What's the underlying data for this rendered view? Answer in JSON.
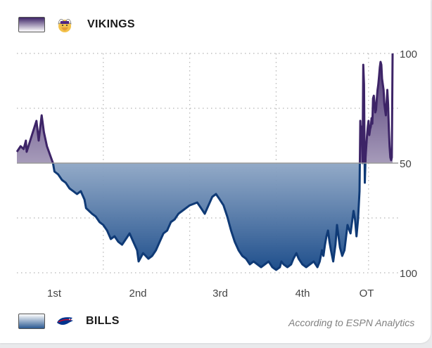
{
  "header": {
    "team_top": "VIKINGS",
    "team_bottom": "BILLS",
    "source_note": "According to ESPN Analytics"
  },
  "icons": {
    "team_top_logo": "vikings-logo-icon",
    "team_bottom_logo": "bills-logo-icon"
  },
  "colors": {
    "vikings": "#3d2467",
    "bills": "#0f3a76",
    "midline": "#9a9a9a"
  },
  "chart_data": {
    "type": "area",
    "x_unit": "game progress (quarters)",
    "x_categories": [
      "1st",
      "2nd",
      "3rd",
      "4th",
      "OT"
    ],
    "y_tick_labels": [
      "100",
      "50",
      "100"
    ],
    "y_range": [
      -100,
      100
    ],
    "grid": true,
    "midline": 0,
    "series": [
      {
        "name": "VIKINGS",
        "comment": "positive values = Vikings win probability above 50%",
        "points": [
          [
            0.0,
            10.3
          ],
          [
            0.05,
            15.4
          ],
          [
            0.09,
            12.8
          ],
          [
            0.12,
            20.5
          ],
          [
            0.13,
            10.3
          ],
          [
            0.2,
            25.6
          ],
          [
            0.26,
            38.5
          ],
          [
            0.29,
            20.5
          ],
          [
            0.33,
            43.6
          ],
          [
            0.36,
            28.2
          ],
          [
            0.4,
            15.4
          ],
          [
            0.44,
            7.7
          ],
          [
            0.48,
            0.0
          ],
          [
            0.5,
            -7.7
          ],
          [
            0.55,
            -10.3
          ],
          [
            0.6,
            -15.4
          ],
          [
            0.65,
            -17.9
          ],
          [
            0.7,
            -23.1
          ],
          [
            0.75,
            -25.6
          ],
          [
            0.8,
            -28.2
          ],
          [
            0.85,
            -25.6
          ],
          [
            0.9,
            -33.3
          ],
          [
            0.92,
            -41.0
          ],
          [
            1.0,
            -46.2
          ],
          [
            1.05,
            -48.7
          ],
          [
            1.1,
            -53.8
          ],
          [
            1.15,
            -56.4
          ],
          [
            1.2,
            -61.5
          ],
          [
            1.25,
            -69.2
          ],
          [
            1.3,
            -66.7
          ],
          [
            1.35,
            -71.8
          ],
          [
            1.4,
            -74.4
          ],
          [
            1.45,
            -69.2
          ],
          [
            1.5,
            -64.1
          ],
          [
            1.55,
            -71.8
          ],
          [
            1.6,
            -79.5
          ],
          [
            1.62,
            -89.7
          ],
          [
            1.68,
            -82.1
          ],
          [
            1.75,
            -87.2
          ],
          [
            1.8,
            -84.6
          ],
          [
            1.85,
            -79.5
          ],
          [
            1.9,
            -71.8
          ],
          [
            1.95,
            -64.1
          ],
          [
            2.0,
            -61.5
          ],
          [
            2.05,
            -53.8
          ],
          [
            2.1,
            -51.3
          ],
          [
            2.15,
            -46.2
          ],
          [
            2.2,
            -43.6
          ],
          [
            2.3,
            -38.5
          ],
          [
            2.4,
            -35.9
          ],
          [
            2.45,
            -41.0
          ],
          [
            2.5,
            -46.2
          ],
          [
            2.55,
            -38.5
          ],
          [
            2.6,
            -30.8
          ],
          [
            2.65,
            -28.2
          ],
          [
            2.7,
            -33.3
          ],
          [
            2.75,
            -38.5
          ],
          [
            2.8,
            -48.7
          ],
          [
            2.85,
            -61.5
          ],
          [
            2.9,
            -71.8
          ],
          [
            2.95,
            -79.5
          ],
          [
            3.0,
            -84.6
          ],
          [
            3.05,
            -87.2
          ],
          [
            3.1,
            -92.3
          ],
          [
            3.15,
            -89.7
          ],
          [
            3.2,
            -92.3
          ],
          [
            3.25,
            -94.9
          ],
          [
            3.3,
            -92.3
          ],
          [
            3.35,
            -89.7
          ],
          [
            3.4,
            -94.9
          ],
          [
            3.45,
            -97.4
          ],
          [
            3.5,
            -94.9
          ],
          [
            3.52,
            -89.7
          ],
          [
            3.55,
            -92.3
          ],
          [
            3.6,
            -94.9
          ],
          [
            3.65,
            -92.3
          ],
          [
            3.68,
            -87.2
          ],
          [
            3.72,
            -82.1
          ],
          [
            3.75,
            -87.2
          ],
          [
            3.8,
            -92.3
          ],
          [
            3.85,
            -94.9
          ],
          [
            3.9,
            -92.3
          ],
          [
            3.95,
            -89.7
          ],
          [
            4.0,
            -94.9
          ],
          [
            4.03,
            -89.7
          ],
          [
            4.06,
            -79.5
          ],
          [
            4.08,
            -84.6
          ],
          [
            4.1,
            -74.4
          ],
          [
            4.12,
            -66.7
          ],
          [
            4.14,
            -61.5
          ],
          [
            4.16,
            -71.8
          ],
          [
            4.18,
            -79.5
          ],
          [
            4.21,
            -89.7
          ],
          [
            4.24,
            -74.4
          ],
          [
            4.26,
            -56.4
          ],
          [
            4.28,
            -66.7
          ],
          [
            4.3,
            -76.9
          ],
          [
            4.33,
            -84.6
          ],
          [
            4.36,
            -79.5
          ],
          [
            4.4,
            -56.4
          ],
          [
            4.44,
            -64.1
          ],
          [
            4.48,
            -43.6
          ],
          [
            4.5,
            -51.3
          ],
          [
            4.52,
            -66.7
          ],
          [
            4.54,
            -51.3
          ],
          [
            4.56,
            -25.6
          ],
          [
            4.57,
            38.5
          ],
          [
            4.58,
            17.9
          ],
          [
            4.59,
            33.3
          ],
          [
            4.6,
            0.0
          ],
          [
            4.61,
            89.7
          ],
          [
            4.62,
            71.8
          ],
          [
            4.63,
            -17.9
          ],
          [
            4.64,
            5.1
          ],
          [
            4.65,
            15.4
          ],
          [
            4.66,
            25.6
          ],
          [
            4.67,
            33.3
          ],
          [
            4.68,
            38.5
          ],
          [
            4.69,
            25.6
          ],
          [
            4.7,
            30.8
          ],
          [
            4.71,
            33.3
          ],
          [
            4.72,
            41.0
          ],
          [
            4.73,
            35.9
          ],
          [
            4.74,
            59.0
          ],
          [
            4.75,
            61.5
          ],
          [
            4.76,
            53.8
          ],
          [
            4.77,
            46.2
          ],
          [
            4.78,
            48.7
          ],
          [
            4.79,
            59.0
          ],
          [
            4.8,
            66.7
          ],
          [
            4.81,
            71.8
          ],
          [
            4.82,
            79.5
          ],
          [
            4.83,
            87.2
          ],
          [
            4.84,
            92.3
          ],
          [
            4.85,
            89.7
          ],
          [
            4.86,
            76.9
          ],
          [
            4.87,
            71.8
          ],
          [
            4.88,
            66.7
          ],
          [
            4.89,
            53.8
          ],
          [
            4.9,
            48.7
          ],
          [
            4.91,
            43.6
          ],
          [
            4.93,
            66.7
          ],
          [
            4.94,
            53.8
          ],
          [
            4.95,
            30.8
          ],
          [
            4.96,
            15.4
          ],
          [
            4.97,
            5.1
          ],
          [
            4.98,
            2.6
          ],
          [
            4.99,
            5.1
          ],
          [
            5.0,
            100.0
          ]
        ]
      },
      {
        "name": "BILLS",
        "comment": "negative values = Bills win probability above 50%"
      }
    ]
  }
}
